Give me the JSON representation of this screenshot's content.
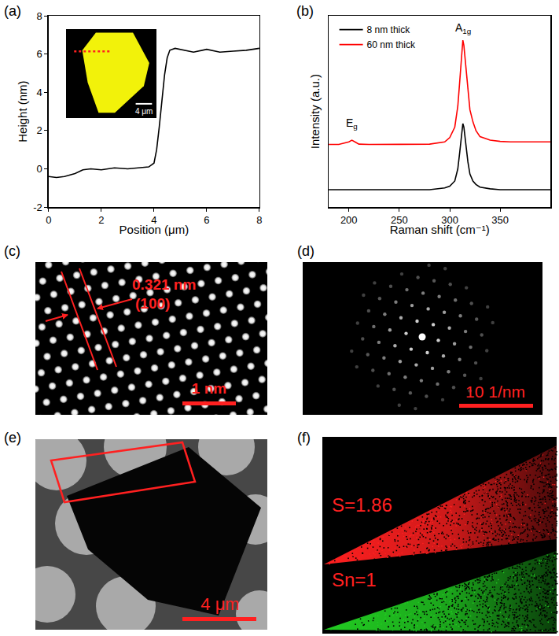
{
  "panel_labels": [
    "(a)",
    "(b)",
    "(c)",
    "(d)",
    "(e)",
    "(f)"
  ],
  "chart_data": [
    {
      "type": "line",
      "x_label": "Position (μm)",
      "y_label": "Height (nm)",
      "x": [
        0,
        0.3,
        0.6,
        1.0,
        1.3,
        1.6,
        2.0,
        2.5,
        3.0,
        3.5,
        3.8,
        4.0,
        4.1,
        4.2,
        4.3,
        4.4,
        4.5,
        4.6,
        4.8,
        5.0,
        5.5,
        6.0,
        6.5,
        7.0,
        7.5,
        8.0
      ],
      "values": [
        -0.4,
        -0.45,
        -0.4,
        -0.25,
        -0.05,
        0,
        -0.05,
        0.05,
        0.0,
        0.05,
        0.1,
        0.3,
        1.0,
        2.2,
        3.6,
        4.9,
        5.8,
        6.2,
        6.3,
        6.25,
        6.1,
        6.25,
        6.1,
        6.15,
        6.2,
        6.3
      ],
      "color": "#000000",
      "xlim": [
        0,
        8
      ],
      "xticks": [
        0,
        2,
        4,
        6,
        8
      ],
      "ylim": [
        -2,
        8
      ],
      "yticks": [
        -2,
        0,
        2,
        4,
        6,
        8
      ],
      "inset": {
        "scale_bar": "4 μm"
      }
    },
    {
      "type": "line",
      "x_label": "Raman shift (cm⁻¹)",
      "y_label": "Intensity (a.u.)",
      "x": [
        180,
        190,
        200,
        203,
        206,
        210,
        220,
        240,
        260,
        280,
        295,
        300,
        305,
        308,
        310,
        312,
        313,
        314,
        316,
        318,
        320,
        323,
        326,
        330,
        340,
        350,
        360,
        380,
        400
      ],
      "series": [
        {
          "name": "8 nm thick",
          "color": "#000000",
          "values": [
            1.0,
            1.0,
            1.0,
            1.0,
            1.0,
            1.0,
            1.0,
            1.0,
            1.0,
            1.0,
            1.1,
            1.2,
            1.5,
            2.2,
            3.2,
            4.4,
            4.8,
            4.6,
            3.6,
            2.6,
            1.9,
            1.5,
            1.3,
            1.15,
            1.05,
            1.0,
            1.0,
            1.0,
            1.0
          ]
        },
        {
          "name": "60 nm thick",
          "color": "#ff0000",
          "values": [
            3.6,
            3.6,
            3.75,
            3.85,
            3.75,
            3.62,
            3.6,
            3.6,
            3.6,
            3.62,
            3.75,
            4.0,
            4.6,
            5.8,
            7.3,
            8.9,
            9.6,
            9.3,
            8.0,
            6.6,
            5.6,
            4.9,
            4.4,
            4.05,
            3.85,
            3.78,
            3.75,
            3.75,
            3.75
          ]
        }
      ],
      "xlim": [
        180,
        400
      ],
      "xticks": [
        200,
        250,
        300,
        350
      ],
      "ylim": [
        0,
        11
      ],
      "yticks": [],
      "tick_labels": "x",
      "legend": "top-left",
      "annotations": [
        {
          "text": "E",
          "subscript": "g",
          "x": 203,
          "y": 4.3
        },
        {
          "text": "A",
          "subscript": "1g",
          "x": 313,
          "y": 9.8
        }
      ]
    }
  ],
  "images": {
    "c": {
      "spacing_label": "0.321 nm",
      "plane_label": "(100)",
      "scale_bar": "1 nm"
    },
    "d": {
      "scale_bar": "10 1/nm"
    },
    "e": {
      "scale_bar": "4 μm"
    },
    "f": {
      "maps": [
        {
          "label": "S=1.86",
          "color": "#ff2020"
        },
        {
          "label": "Sn=1",
          "color": "#22cc22"
        }
      ]
    }
  }
}
